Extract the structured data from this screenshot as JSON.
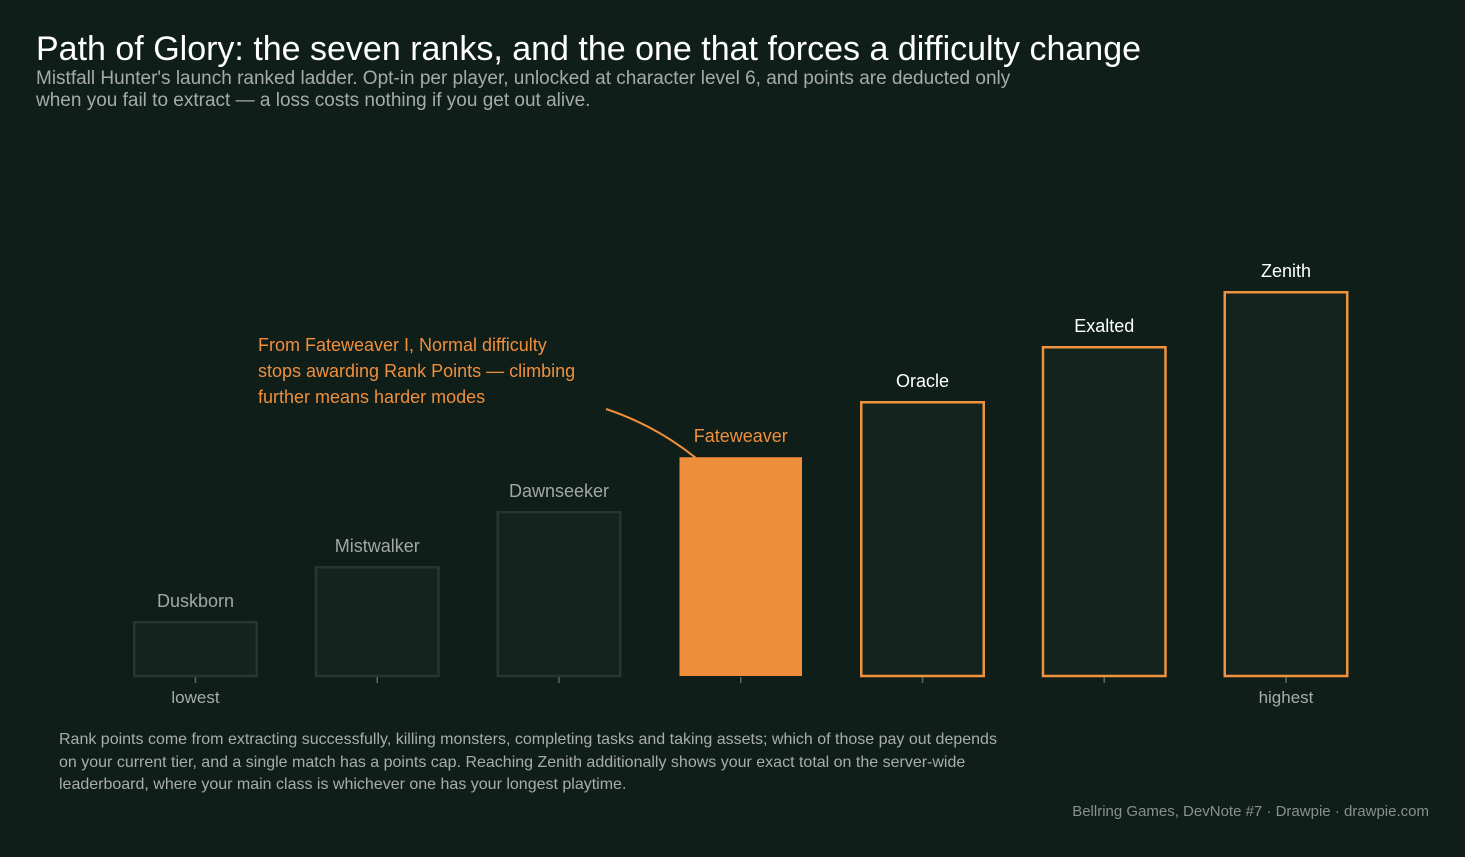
{
  "title": "Path of Glory: the seven ranks, and the one that forces a difficulty change",
  "subtitle": "Mistfall Hunter's launch ranked ladder. Opt-in per player, unlocked at character level 6, and points are deducted only when you fail to extract — a loss costs nothing if you get out alive.",
  "footnote": "Rank points come from extracting successfully, killing monsters, completing tasks and taking assets; which of those pay out depends on your current tier, and a single match has a points cap. Reaching Zenith additionally shows your exact total on the server-wide leaderboard, where your main class is whichever one has your longest playtime.",
  "credit": "Bellring Games, DevNote #7  ·  Drawpie · drawpie.com",
  "annotation": {
    "lines": [
      "From Fateweaver I, Normal difficulty",
      "stops awarding Rank Points — climbing",
      "further means harder modes"
    ],
    "target": "Fateweaver"
  },
  "colors": {
    "background": "#101e19",
    "bar_fill": "#15231e",
    "lower_outline": "#28362f",
    "lower_label": "#a3a7a4",
    "highlight": "#ef8f3c",
    "upper_outline": "#f1923e",
    "upper_label": "#ffffff",
    "axis_label": "#a8aca9"
  },
  "chart_data": {
    "type": "bar",
    "categories": [
      "Duskborn",
      "Mistwalker",
      "Dawnseeker",
      "Fateweaver",
      "Oracle",
      "Exalted",
      "Zenith"
    ],
    "values": [
      1,
      2,
      3,
      4,
      5,
      6,
      7
    ],
    "ylim": [
      0,
      7
    ],
    "highlight": "Fateweaver",
    "x_end_labels": {
      "first": "lowest",
      "last": "highest"
    },
    "grid": false,
    "legend": "none"
  }
}
